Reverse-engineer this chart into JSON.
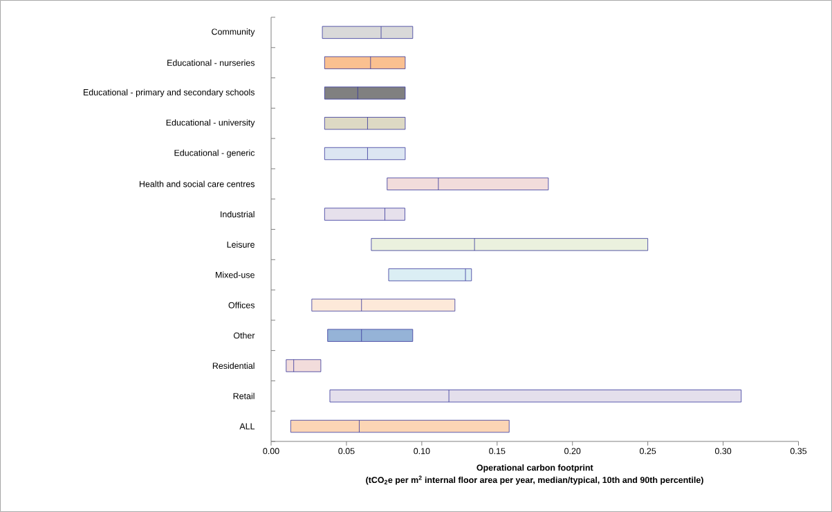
{
  "chart_data": {
    "type": "box",
    "orientation": "horizontal",
    "categories": [
      "Community",
      "Educational - nurseries",
      "Educational - primary and secondary schools",
      "Educational - university",
      "Educational - generic",
      "Health and social care centres",
      "Industrial",
      "Leisure",
      "Mixed-use",
      "Offices",
      "Other",
      "Residential",
      "Retail",
      "ALL"
    ],
    "boxes": [
      {
        "low": 0.034,
        "q1": 0.034,
        "median": 0.073,
        "q3": 0.094,
        "high": 0.094
      },
      {
        "low": 0.0355,
        "q1": 0.0355,
        "median": 0.066,
        "q3": 0.089,
        "high": 0.089
      },
      {
        "low": 0.0355,
        "q1": 0.0355,
        "median": 0.0575,
        "q3": 0.089,
        "high": 0.089
      },
      {
        "low": 0.0355,
        "q1": 0.0355,
        "median": 0.064,
        "q3": 0.089,
        "high": 0.089
      },
      {
        "low": 0.0355,
        "q1": 0.0355,
        "median": 0.064,
        "q3": 0.089,
        "high": 0.089
      },
      {
        "low": 0.077,
        "q1": 0.077,
        "median": 0.111,
        "q3": 0.184,
        "high": 0.184
      },
      {
        "low": 0.0355,
        "q1": 0.0355,
        "median": 0.0755,
        "q3": 0.0888,
        "high": 0.0888
      },
      {
        "low": 0.0665,
        "q1": 0.0665,
        "median": 0.135,
        "q3": 0.25,
        "high": 0.25
      },
      {
        "low": 0.078,
        "q1": 0.078,
        "median": 0.129,
        "q3": 0.133,
        "high": 0.133
      },
      {
        "low": 0.027,
        "q1": 0.027,
        "median": 0.06,
        "q3": 0.122,
        "high": 0.122
      },
      {
        "low": 0.0375,
        "q1": 0.0375,
        "median": 0.06,
        "q3": 0.094,
        "high": 0.094
      },
      {
        "low": 0.01,
        "q1": 0.01,
        "median": 0.015,
        "q3": 0.033,
        "high": 0.033
      },
      {
        "low": 0.039,
        "q1": 0.039,
        "median": 0.118,
        "q3": 0.312,
        "high": 0.312
      },
      {
        "low": 0.013,
        "q1": 0.013,
        "median": 0.0585,
        "q3": 0.158,
        "high": 0.158
      }
    ],
    "colors": [
      "#d9d9d9",
      "#fac090",
      "#808080",
      "#ddd9c4",
      "#dce6f2",
      "#f2dcdb",
      "#e6e0ec",
      "#ebf1de",
      "#dbeef4",
      "#fde9d9",
      "#95b3d7",
      "#f2dcdb",
      "#e4dfec",
      "#fcd5b5"
    ],
    "xlim": [
      0,
      0.35
    ],
    "xticks": [
      {
        "value": 0,
        "label": "0.00"
      },
      {
        "value": 0.05,
        "label": "0.05"
      },
      {
        "value": 0.1,
        "label": "0.10"
      },
      {
        "value": 0.15,
        "label": "0.15"
      },
      {
        "value": 0.2,
        "label": "0.20"
      },
      {
        "value": 0.25,
        "label": "0.25"
      },
      {
        "value": 0.3,
        "label": "0.30"
      },
      {
        "value": 0.35,
        "label": "0.35"
      }
    ],
    "xlabel": "Operational carbon footprint",
    "annotations": [
      "(tCO$_{2}$e per m$^{2}$ internal floor area per year, median/typical, 10th and 90th percentile)"
    ]
  }
}
